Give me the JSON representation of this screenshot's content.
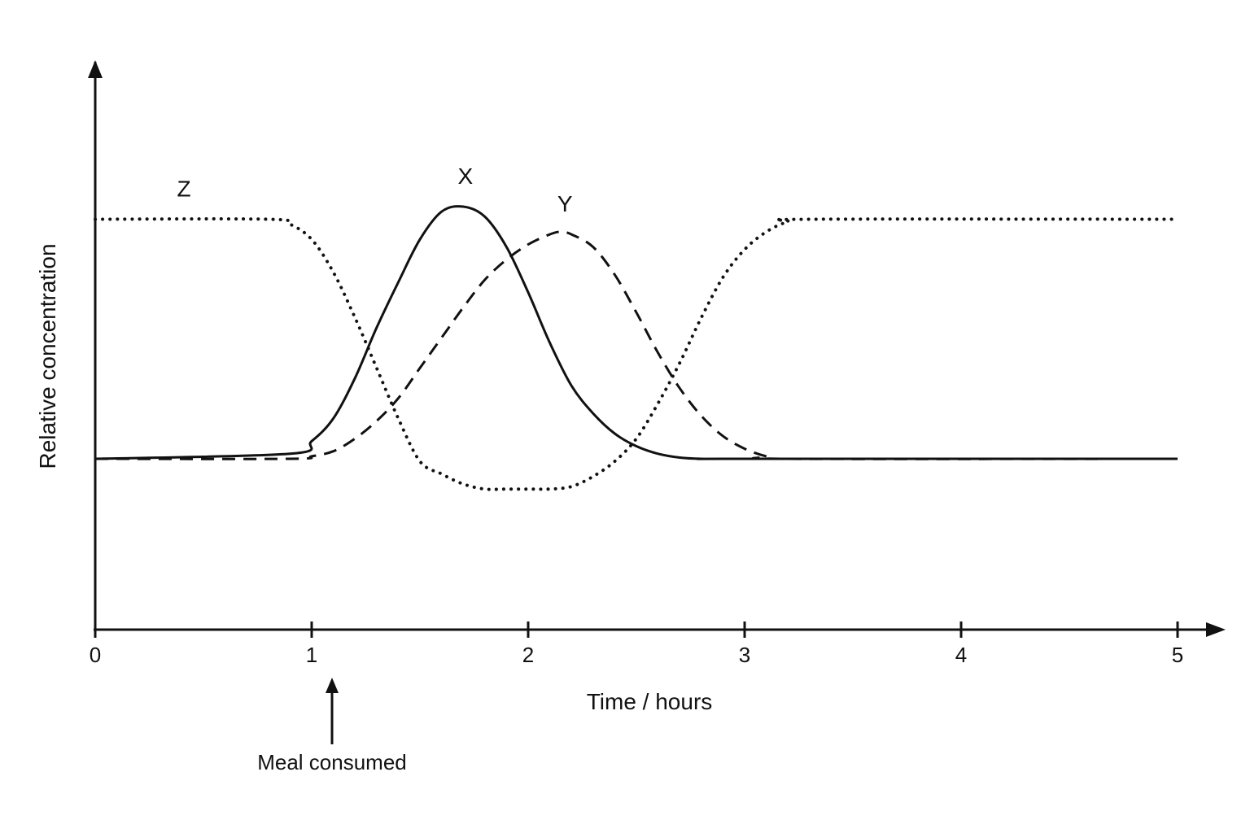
{
  "chart_data": {
    "type": "line",
    "title": "",
    "xlabel": "Time / hours",
    "ylabel": "Relative concentration",
    "xlim": [
      0,
      5
    ],
    "ylim": [
      -0.75,
      1.0
    ],
    "x_ticks": [
      0,
      1,
      2,
      3,
      4,
      5
    ],
    "x_tick_labels": [
      "0",
      "1",
      "2",
      "3",
      "4",
      "5"
    ],
    "y_ticks_shown": false,
    "grid": false,
    "legend": "none",
    "series": [
      {
        "name": "X",
        "style": "solid",
        "color": "#111111",
        "x": [
          0,
          0.9,
          1.0,
          1.1,
          1.2,
          1.3,
          1.4,
          1.5,
          1.6,
          1.7,
          1.8,
          1.9,
          2.0,
          2.1,
          2.2,
          2.3,
          2.4,
          2.5,
          2.6,
          2.7,
          2.8,
          3.0,
          5.0
        ],
        "y": [
          0,
          0.02,
          0.07,
          0.16,
          0.32,
          0.52,
          0.7,
          0.87,
          0.98,
          1.0,
          0.96,
          0.84,
          0.66,
          0.46,
          0.29,
          0.18,
          0.1,
          0.05,
          0.02,
          0.005,
          0,
          0,
          0
        ]
      },
      {
        "name": "Y",
        "style": "dashed",
        "color": "#111111",
        "x": [
          0,
          0.9,
          1.0,
          1.1,
          1.2,
          1.3,
          1.4,
          1.5,
          1.6,
          1.7,
          1.8,
          1.9,
          2.0,
          2.1,
          2.15,
          2.2,
          2.3,
          2.4,
          2.5,
          2.6,
          2.7,
          2.8,
          2.9,
          3.0,
          3.1,
          3.2,
          5.0
        ],
        "y": [
          0,
          0.0,
          0.01,
          0.03,
          0.08,
          0.15,
          0.24,
          0.36,
          0.48,
          0.6,
          0.71,
          0.79,
          0.85,
          0.89,
          0.9,
          0.89,
          0.84,
          0.73,
          0.58,
          0.42,
          0.28,
          0.17,
          0.09,
          0.04,
          0.01,
          0,
          0
        ]
      },
      {
        "name": "Z",
        "style": "dotted",
        "color": "#111111",
        "x": [
          0,
          0.8,
          0.9,
          1.0,
          1.1,
          1.2,
          1.3,
          1.4,
          1.5,
          1.6,
          1.7,
          1.8,
          1.9,
          2.0,
          2.1,
          2.2,
          2.3,
          2.4,
          2.5,
          2.6,
          2.7,
          2.8,
          2.9,
          3.0,
          3.1,
          3.2,
          3.3,
          5.0
        ],
        "y": [
          0.95,
          0.95,
          0.93,
          0.87,
          0.74,
          0.56,
          0.36,
          0.16,
          -0.01,
          -0.06,
          -0.1,
          -0.12,
          -0.12,
          -0.12,
          -0.12,
          -0.11,
          -0.07,
          -0.01,
          0.08,
          0.22,
          0.38,
          0.56,
          0.72,
          0.83,
          0.9,
          0.94,
          0.95,
          0.95
        ]
      }
    ],
    "series_labels": [
      {
        "text": "X",
        "x": 1.74,
        "y": 1.09
      },
      {
        "text": "Y",
        "x": 2.2,
        "y": 0.98
      },
      {
        "text": "Z",
        "x": 0.44,
        "y": 1.04
      }
    ],
    "annotations": [
      {
        "text": "Meal consumed",
        "x": 1.0,
        "points_to": "x-axis"
      }
    ]
  }
}
